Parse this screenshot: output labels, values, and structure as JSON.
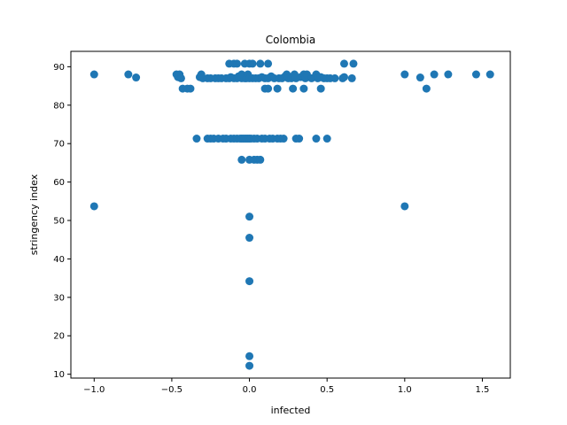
{
  "chart_data": {
    "type": "scatter",
    "title": "Colombia",
    "xlabel": "infected",
    "ylabel": "stringency index",
    "xlim": [
      -1.15,
      1.68
    ],
    "ylim": [
      9.0,
      94.0
    ],
    "xticks": [
      -1.0,
      -0.5,
      0.0,
      0.5,
      1.0,
      1.5
    ],
    "xtick_labels": [
      "−1.0",
      "−0.5",
      "0.0",
      "0.5",
      "1.0",
      "1.5"
    ],
    "yticks": [
      10,
      20,
      30,
      40,
      50,
      60,
      70,
      80,
      90
    ],
    "ytick_labels": [
      "10",
      "20",
      "30",
      "40",
      "50",
      "60",
      "70",
      "80",
      "90"
    ],
    "grid": false,
    "marker_color": "#1f77b4",
    "points": [
      [
        -1.0,
        88.0
      ],
      [
        -1.0,
        53.7
      ],
      [
        -0.78,
        88.0
      ],
      [
        -0.73,
        87.2
      ],
      [
        -0.47,
        88.0
      ],
      [
        -0.46,
        87.3
      ],
      [
        -0.45,
        88.0
      ],
      [
        -0.44,
        87.0
      ],
      [
        -0.43,
        84.3
      ],
      [
        -0.4,
        84.3
      ],
      [
        -0.38,
        84.3
      ],
      [
        -0.34,
        71.3
      ],
      [
        -0.32,
        87.3
      ],
      [
        -0.31,
        88.0
      ],
      [
        -0.3,
        87.0
      ],
      [
        -0.27,
        71.3
      ],
      [
        -0.27,
        87.0
      ],
      [
        -0.25,
        71.3
      ],
      [
        -0.25,
        87.0
      ],
      [
        -0.23,
        71.3
      ],
      [
        -0.22,
        87.0
      ],
      [
        -0.2,
        87.0
      ],
      [
        -0.2,
        71.3
      ],
      [
        -0.18,
        87.0
      ],
      [
        -0.17,
        71.3
      ],
      [
        -0.15,
        87.0
      ],
      [
        -0.15,
        71.3
      ],
      [
        -0.13,
        87.0
      ],
      [
        -0.12,
        71.3
      ],
      [
        -0.12,
        87.3
      ],
      [
        -0.1,
        71.3
      ],
      [
        -0.1,
        87.0
      ],
      [
        -0.13,
        90.8
      ],
      [
        -0.1,
        90.8
      ],
      [
        -0.08,
        90.8
      ],
      [
        -0.08,
        87.0
      ],
      [
        -0.08,
        71.3
      ],
      [
        -0.07,
        87.5
      ],
      [
        -0.06,
        71.3
      ],
      [
        -0.05,
        87.0
      ],
      [
        -0.05,
        71.3
      ],
      [
        -0.05,
        88.0
      ],
      [
        -0.04,
        71.3
      ],
      [
        -0.03,
        87.0
      ],
      [
        -0.03,
        71.3
      ],
      [
        -0.03,
        90.8
      ],
      [
        -0.02,
        71.3
      ],
      [
        -0.02,
        87.0
      ],
      [
        -0.01,
        71.3
      ],
      [
        -0.01,
        88.0
      ],
      [
        0.0,
        71.3
      ],
      [
        0.0,
        87.0
      ],
      [
        0.0,
        90.8
      ],
      [
        0.0,
        51.0
      ],
      [
        0.0,
        45.5
      ],
      [
        0.0,
        34.2
      ],
      [
        0.0,
        14.7
      ],
      [
        0.0,
        12.2
      ],
      [
        -0.05,
        65.8
      ],
      [
        0.0,
        65.8
      ],
      [
        0.01,
        71.3
      ],
      [
        0.02,
        87.0
      ],
      [
        0.02,
        90.8
      ],
      [
        0.03,
        71.3
      ],
      [
        0.03,
        65.8
      ],
      [
        0.04,
        87.0
      ],
      [
        0.05,
        71.3
      ],
      [
        0.05,
        65.8
      ],
      [
        0.06,
        87.0
      ],
      [
        0.07,
        65.8
      ],
      [
        0.08,
        71.3
      ],
      [
        0.08,
        87.3
      ],
      [
        0.1,
        71.3
      ],
      [
        0.1,
        87.0
      ],
      [
        0.07,
        90.8
      ],
      [
        0.12,
        90.8
      ],
      [
        0.1,
        84.3
      ],
      [
        0.12,
        84.3
      ],
      [
        0.12,
        87.0
      ],
      [
        0.13,
        71.3
      ],
      [
        0.14,
        87.5
      ],
      [
        0.15,
        71.3
      ],
      [
        0.16,
        87.0
      ],
      [
        0.18,
        71.3
      ],
      [
        0.18,
        84.3
      ],
      [
        0.19,
        87.0
      ],
      [
        0.2,
        71.3
      ],
      [
        0.21,
        87.0
      ],
      [
        0.22,
        71.3
      ],
      [
        0.23,
        87.5
      ],
      [
        0.24,
        88.0
      ],
      [
        0.25,
        87.0
      ],
      [
        0.27,
        87.0
      ],
      [
        0.28,
        84.3
      ],
      [
        0.29,
        88.0
      ],
      [
        0.3,
        71.3
      ],
      [
        0.3,
        87.0
      ],
      [
        0.32,
        71.3
      ],
      [
        0.33,
        87.3
      ],
      [
        0.35,
        88.0
      ],
      [
        0.35,
        84.3
      ],
      [
        0.36,
        87.0
      ],
      [
        0.37,
        88.0
      ],
      [
        0.4,
        87.0
      ],
      [
        0.43,
        71.3
      ],
      [
        0.43,
        88.0
      ],
      [
        0.44,
        87.0
      ],
      [
        0.46,
        84.3
      ],
      [
        0.46,
        87.3
      ],
      [
        0.48,
        87.0
      ],
      [
        0.5,
        71.3
      ],
      [
        0.5,
        87.0
      ],
      [
        0.52,
        87.0
      ],
      [
        0.55,
        87.0
      ],
      [
        0.6,
        87.0
      ],
      [
        0.61,
        90.8
      ],
      [
        0.61,
        87.3
      ],
      [
        0.66,
        87.0
      ],
      [
        0.67,
        90.8
      ],
      [
        1.0,
        88.0
      ],
      [
        1.0,
        53.7
      ],
      [
        1.1,
        87.2
      ],
      [
        1.14,
        84.3
      ],
      [
        1.19,
        88.0
      ],
      [
        1.28,
        88.0
      ],
      [
        1.46,
        88.0
      ],
      [
        1.55,
        88.0
      ]
    ]
  }
}
